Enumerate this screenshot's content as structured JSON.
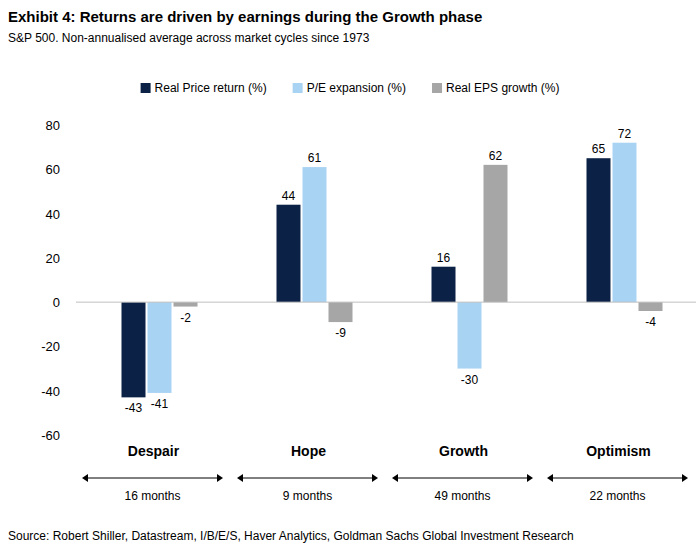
{
  "chart_data": {
    "type": "bar",
    "title": "Exhibit 4: Returns are driven by earnings during the Growth phase",
    "subtitle": "S&P 500. Non-annualised average across market cycles since 1973",
    "categories": [
      "Despair",
      "Hope",
      "Growth",
      "Optimism"
    ],
    "series": [
      {
        "name": "Real Price return (%)",
        "color": "#0b2145",
        "values": [
          -43,
          44,
          16,
          65
        ]
      },
      {
        "name": "P/E expansion (%)",
        "color": "#a9d3f3",
        "values": [
          -41,
          61,
          -30,
          72
        ]
      },
      {
        "name": "Real EPS growth (%)",
        "color": "#a6a6a6",
        "values": [
          -2,
          -9,
          62,
          -4
        ]
      }
    ],
    "ylim": [
      -60,
      80
    ],
    "yticks": [
      -60,
      -40,
      -20,
      0,
      20,
      40,
      60,
      80
    ],
    "grid": false,
    "legend": "top",
    "data_labels": true,
    "annotations": [
      "16 months",
      "9 months",
      "49 months",
      "22 months"
    ],
    "source": "Source: Robert Shiller, Datastream, I/B/E/S, Haver Analytics, Goldman Sachs Global Investment Research"
  }
}
